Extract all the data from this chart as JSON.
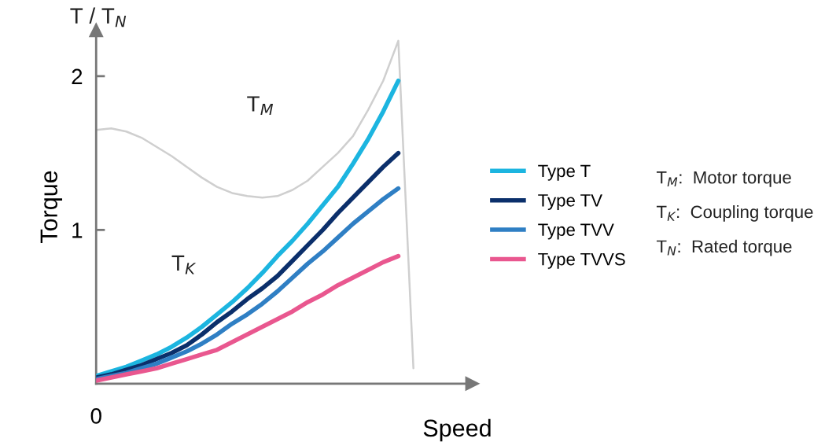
{
  "chart_data": {
    "type": "line",
    "title": "T / T$_{N}$",
    "xlabel": "Speed",
    "ylabel": "Torque",
    "categories": [
      "0",
      null,
      null,
      null,
      null,
      null,
      null,
      null,
      null,
      null,
      null,
      null,
      null,
      null,
      null,
      null,
      null,
      null,
      null,
      null,
      null,
      null
    ],
    "series": [
      {
        "color": "#cfcfcf",
        "values": [
          1.65,
          1.66,
          1.64,
          1.6,
          1.54,
          1.48,
          1.41,
          1.34,
          1.28,
          1.24,
          1.22,
          1.21,
          1.22,
          1.26,
          1.32,
          1.41,
          1.5,
          1.61,
          1.78,
          1.97,
          2.23,
          0.1
        ]
      },
      {
        "name": "Type T",
        "color": "#1cb5e0",
        "values": [
          0.05,
          0.08,
          0.11,
          0.15,
          0.19,
          0.24,
          0.3,
          0.37,
          0.45,
          0.53,
          0.62,
          0.72,
          0.83,
          0.93,
          1.04,
          1.16,
          1.28,
          1.43,
          1.59,
          1.77,
          1.97,
          null
        ]
      },
      {
        "name": "Type TV",
        "color": "#0b2f6b",
        "values": [
          0.04,
          0.06,
          0.09,
          0.12,
          0.16,
          0.2,
          0.25,
          0.32,
          0.4,
          0.47,
          0.55,
          0.62,
          0.7,
          0.8,
          0.9,
          1.0,
          1.11,
          1.21,
          1.31,
          1.41,
          1.5,
          null
        ]
      },
      {
        "name": "Type TVV",
        "color": "#2f7fc4",
        "values": [
          0.03,
          0.05,
          0.07,
          0.1,
          0.13,
          0.17,
          0.21,
          0.26,
          0.32,
          0.39,
          0.45,
          0.52,
          0.6,
          0.69,
          0.78,
          0.86,
          0.95,
          1.04,
          1.12,
          1.2,
          1.27,
          null
        ]
      },
      {
        "name": "Type TVVS",
        "color": "#e9578f",
        "values": [
          0.02,
          0.04,
          0.06,
          0.08,
          0.1,
          0.13,
          0.16,
          0.19,
          0.22,
          0.27,
          0.32,
          0.37,
          0.42,
          0.47,
          0.53,
          0.58,
          0.64,
          0.69,
          0.74,
          0.79,
          0.83,
          null
        ]
      }
    ],
    "ylim": [
      0,
      2.3
    ],
    "yticks": [
      1,
      2
    ],
    "grid": false,
    "legend": "right",
    "annotations": [
      "T$_{M}$",
      "T$_{K}$",
      "T$_{M}$:  Motor torque",
      "T$_{K}$:  Coupling torque",
      "T$_{N}$:  Rated torque"
    ]
  }
}
